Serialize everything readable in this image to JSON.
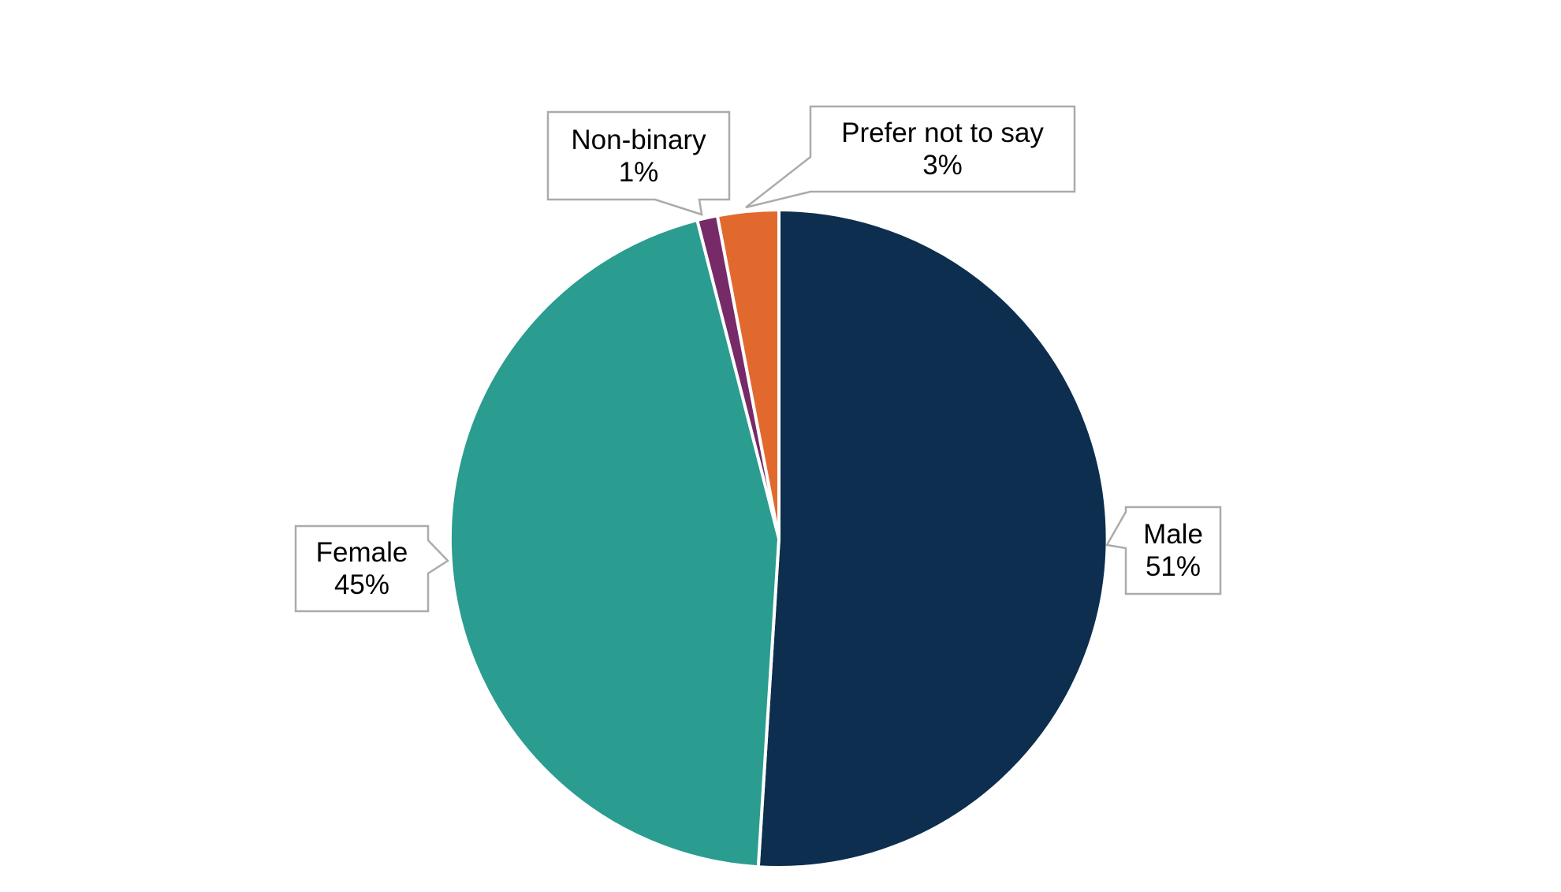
{
  "chart_data": {
    "type": "pie",
    "categories": [
      "Male",
      "Female",
      "Non-binary",
      "Prefer not to say"
    ],
    "values": [
      51,
      45,
      1,
      3
    ],
    "slices": [
      {
        "id": "male",
        "label": "Male",
        "pct": "51%",
        "value": 51,
        "color": "#0d2e4e"
      },
      {
        "id": "female",
        "label": "Female",
        "pct": "45%",
        "value": 45,
        "color": "#2a9c90"
      },
      {
        "id": "non-binary",
        "label": "Non-binary",
        "pct": "1%",
        "value": 1,
        "color": "#762a68"
      },
      {
        "id": "prefer-not-to-say",
        "label": "Prefer not to say",
        "pct": "3%",
        "value": 3,
        "color": "#e2692d"
      }
    ],
    "layout_hints": {
      "start_angle": "12 o'clock",
      "direction": "clockwise",
      "slice_separator_color": "#ffffff",
      "labels": "external rectangular callout boxes with pointer tips",
      "legend": "none",
      "background": "#ffffff"
    }
  },
  "callout_style": {
    "fill": "#ffffff",
    "border_color": "#ababab",
    "text_color": "#000000"
  }
}
